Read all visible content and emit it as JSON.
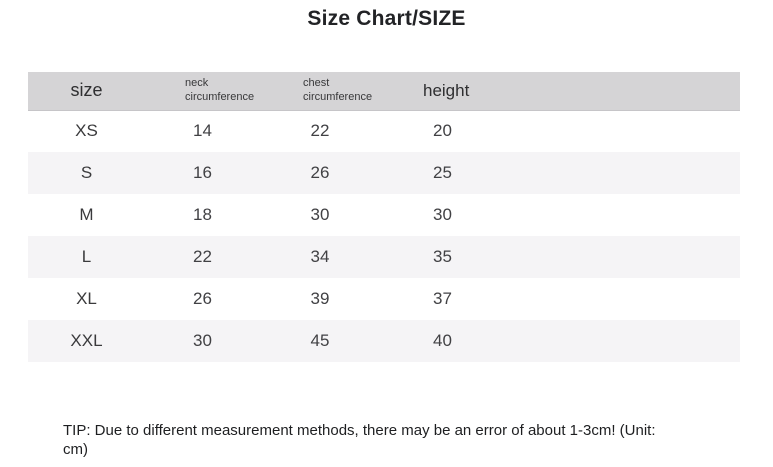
{
  "title": "Size Chart/SIZE",
  "table": {
    "columns": [
      "size",
      "neck circumference",
      "chest circumference",
      "height"
    ],
    "rows": [
      [
        "XS",
        "14",
        "22",
        "20"
      ],
      [
        "S",
        "16",
        "26",
        "25"
      ],
      [
        "M",
        "18",
        "30",
        "30"
      ],
      [
        "L",
        "22",
        "34",
        "35"
      ],
      [
        "XL",
        "26",
        "39",
        "37"
      ],
      [
        "XXL",
        "30",
        "45",
        "40"
      ]
    ]
  },
  "tip_lines": [
    "TIP: Due to different measurement methods, there may be an error of about 1-3cm! (Unit:",
    "cm)"
  ],
  "colors": {
    "header_bg": "#d5d4d6",
    "alt_row_bg": "#f5f4f6",
    "text": "#3d3d3f"
  }
}
